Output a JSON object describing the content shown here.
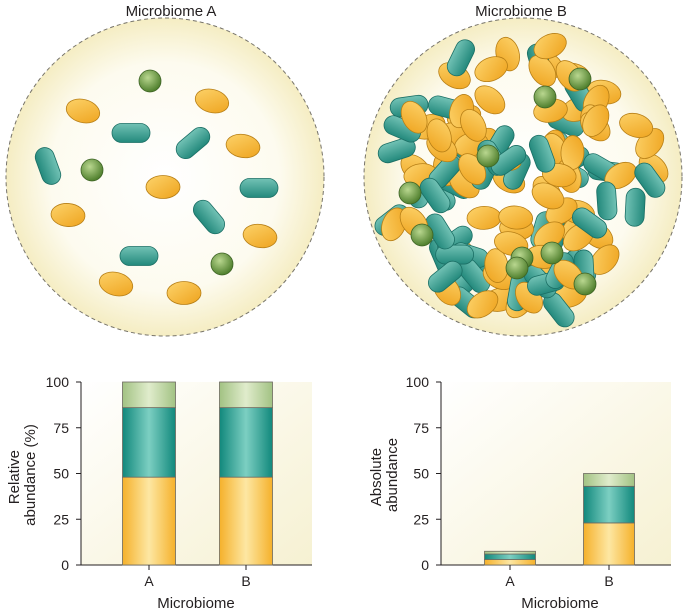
{
  "panels": {
    "a": {
      "title": "Microbiome A"
    },
    "b": {
      "title": "Microbiome B"
    }
  },
  "colors": {
    "orange_bacterium": "#f5b52e",
    "teal_bacterium": "#3fa597",
    "green_bacterium": "#6e9c44",
    "dish_fill": "#fbf6dc",
    "orange_bar": "#f8c443",
    "teal_bar": "#25998c",
    "lightgreen_bar": "#b6cf98"
  },
  "chart_data": [
    {
      "type": "bar",
      "stacked": true,
      "categories": [
        "A",
        "B"
      ],
      "series": [
        {
          "values": [
            48,
            48
          ]
        },
        {
          "values": [
            38,
            38
          ]
        },
        {
          "values": [
            14,
            14
          ]
        }
      ],
      "xlabel": "Microbiome",
      "ylabel": "Relative abundance (%)",
      "ylabel_lines": [
        "Relative",
        "abundance (%)"
      ],
      "ylim": [
        0,
        100
      ],
      "yticks": [
        "0",
        "25",
        "50",
        "75",
        "100"
      ],
      "grid": false
    },
    {
      "type": "bar",
      "stacked": true,
      "categories": [
        "A",
        "B"
      ],
      "series": [
        {
          "values": [
            3,
            23
          ]
        },
        {
          "values": [
            3,
            20
          ]
        },
        {
          "values": [
            1.5,
            7
          ]
        }
      ],
      "xlabel": "Microbiome",
      "ylabel": "Absolute abundance",
      "ylabel_lines": [
        "Absolute",
        "abundance"
      ],
      "ylim": [
        0,
        100
      ],
      "yticks": [
        "0",
        "25",
        "50",
        "75",
        "100"
      ],
      "grid": false
    }
  ]
}
